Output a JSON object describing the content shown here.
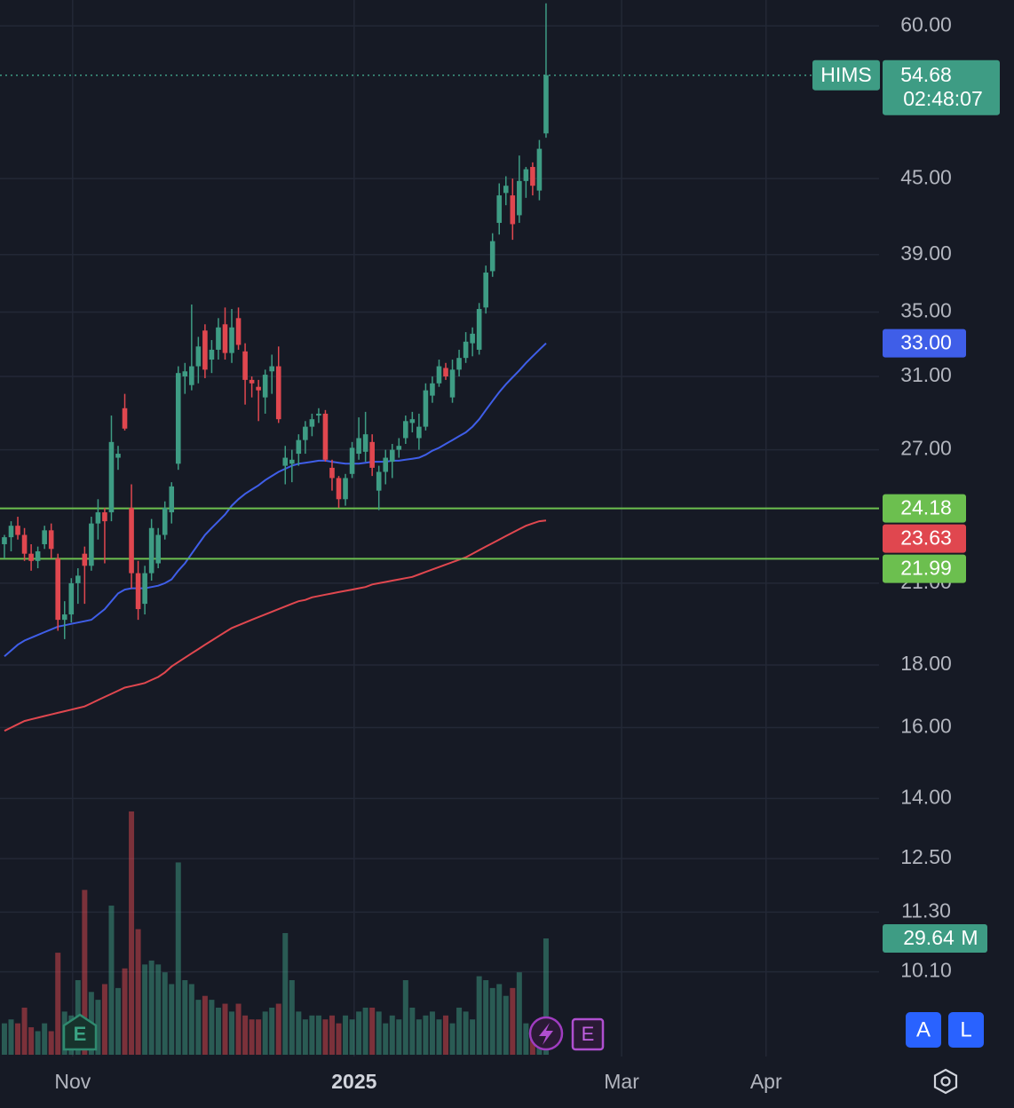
{
  "chart_data": {
    "type": "candlestick",
    "symbol": "HIMS",
    "countdown": "02:48:07",
    "log_scale": true,
    "grid": true,
    "x": [
      0,
      1,
      2,
      3,
      4,
      5,
      6,
      7,
      8,
      9,
      10,
      11,
      12,
      13,
      14,
      15,
      16,
      17,
      18,
      19,
      20,
      21,
      22,
      23,
      24,
      25,
      26,
      27,
      28,
      29,
      30,
      31,
      32,
      33,
      34,
      35,
      36,
      37,
      38,
      39,
      40,
      41,
      42,
      43,
      44,
      45,
      46,
      47,
      48,
      49,
      50,
      51,
      52,
      53,
      54,
      55,
      56,
      57,
      58,
      59,
      60,
      61,
      62,
      63,
      64,
      65,
      66,
      67,
      68,
      69,
      70,
      71,
      72,
      73,
      74,
      75,
      76,
      77,
      78,
      79,
      80,
      81
    ],
    "open": [
      22.6,
      22.9,
      23.4,
      23.0,
      22.2,
      21.9,
      22.6,
      23.2,
      22.0,
      19.6,
      19.8,
      21.0,
      22.2,
      21.7,
      23.5,
      24.0,
      24.0,
      26.6,
      29.2,
      24.2,
      21.4,
      20.2,
      21.4,
      21.8,
      23.0,
      24.0,
      26.3,
      31.0,
      30.5,
      31.6,
      33.8,
      32.0,
      32.6,
      34.2,
      32.4,
      34.6,
      32.5,
      30.8,
      30.4,
      29.8,
      31.3,
      31.6,
      26.2,
      26.3,
      26.8,
      27.5,
      28.2,
      28.8,
      28.9,
      26.1,
      25.6,
      24.6,
      25.8,
      26.8,
      26.9,
      27.4,
      25.0,
      25.9,
      26.4,
      27.0,
      27.6,
      28.4,
      27.6,
      28.2,
      29.9,
      30.6,
      31.5,
      29.8,
      31.4,
      32.1,
      33.0,
      32.6,
      35.3,
      37.8,
      41.4,
      43.8,
      43.6,
      42.0,
      44.8,
      46.0,
      44.0,
      49.0
    ],
    "high": [
      23.0,
      23.6,
      23.8,
      23.3,
      22.6,
      22.5,
      23.4,
      23.5,
      22.2,
      20.3,
      21.2,
      21.6,
      22.5,
      23.8,
      24.6,
      24.2,
      28.8,
      27.2,
      30.0,
      25.3,
      21.9,
      21.7,
      23.7,
      23.3,
      24.5,
      25.4,
      31.6,
      31.8,
      35.5,
      33.4,
      34.2,
      33.2,
      34.6,
      35.3,
      35.2,
      35.3,
      33.0,
      31.0,
      30.8,
      31.4,
      32.3,
      32.8,
      27.2,
      27.0,
      27.8,
      28.5,
      28.9,
      29.2,
      29.1,
      26.5,
      25.7,
      25.8,
      27.4,
      28.7,
      29.0,
      27.8,
      26.2,
      27.0,
      27.3,
      27.6,
      28.8,
      29.0,
      28.9,
      30.6,
      31.0,
      32.0,
      31.8,
      32.0,
      32.6,
      33.7,
      34.0,
      35.6,
      38.2,
      40.6,
      44.6,
      45.2,
      45.0,
      47.0,
      46.0,
      46.4,
      48.4,
      62.6
    ],
    "low": [
      22.0,
      22.3,
      22.8,
      21.9,
      21.5,
      21.6,
      22.4,
      22.0,
      19.2,
      18.9,
      19.5,
      20.2,
      20.2,
      21.5,
      22.8,
      21.8,
      23.6,
      26.0,
      28.0,
      20.8,
      19.6,
      19.8,
      21.1,
      21.6,
      22.8,
      23.5,
      26.0,
      30.0,
      30.2,
      30.6,
      30.9,
      31.2,
      32.0,
      32.0,
      31.8,
      32.6,
      29.4,
      29.8,
      28.5,
      28.9,
      30.0,
      28.4,
      25.3,
      25.4,
      26.2,
      26.8,
      27.7,
      28.4,
      26.4,
      25.0,
      24.2,
      24.3,
      25.6,
      26.5,
      26.4,
      25.7,
      24.1,
      25.3,
      25.6,
      26.6,
      27.3,
      27.9,
      27.0,
      28.0,
      29.5,
      30.4,
      30.8,
      29.5,
      31.0,
      31.8,
      32.2,
      32.3,
      34.9,
      37.4,
      40.5,
      42.8,
      40.1,
      41.4,
      43.4,
      43.6,
      43.2,
      48.6
    ],
    "close": [
      22.9,
      23.4,
      23.0,
      22.2,
      21.9,
      22.3,
      23.2,
      22.4,
      19.6,
      19.8,
      21.0,
      21.3,
      21.7,
      23.5,
      24.0,
      23.6,
      27.4,
      26.8,
      28.1,
      21.4,
      20.0,
      21.4,
      23.3,
      23.0,
      24.2,
      25.2,
      31.2,
      31.3,
      31.6,
      32.8,
      31.4,
      32.6,
      34.0,
      32.4,
      34.0,
      32.9,
      30.8,
      30.6,
      30.2,
      31.1,
      31.6,
      28.6,
      26.6,
      26.5,
      27.5,
      28.2,
      28.6,
      28.9,
      26.5,
      25.6,
      24.6,
      25.6,
      27.1,
      27.6,
      27.8,
      26.1,
      25.9,
      26.6,
      27.0,
      27.2,
      28.5,
      28.6,
      28.2,
      30.2,
      30.6,
      31.6,
      31.0,
      31.4,
      32.1,
      33.1,
      33.6,
      35.2,
      37.7,
      40.0,
      43.6,
      44.4,
      41.3,
      44.8,
      45.8,
      44.4,
      47.6,
      54.68
    ],
    "up_color": "#3e9c84",
    "down_color": "#e0474f",
    "xlim": [
      -0.66,
      130.8
    ],
    "xticks": [
      {
        "value": 10.2,
        "label": "Nov"
      },
      {
        "value": 52.3,
        "label": "2025"
      },
      {
        "value": 92.3,
        "label": "Mar"
      },
      {
        "value": 113.9,
        "label": "Apr"
      }
    ],
    "ylim": [
      8.61,
      63.0
    ],
    "yticks": [
      {
        "value": 60,
        "label": "60.00"
      },
      {
        "value": 45,
        "label": "45.00"
      },
      {
        "value": 39,
        "label": "39.00"
      },
      {
        "value": 35,
        "label": "35.00"
      },
      {
        "value": 31,
        "label": "31.00"
      },
      {
        "value": 27,
        "label": "27.00"
      },
      {
        "value": 21,
        "label": "21.00"
      },
      {
        "value": 18,
        "label": "18.00"
      },
      {
        "value": 16,
        "label": "16.00"
      },
      {
        "value": 14,
        "label": "14.00"
      },
      {
        "value": 12.5,
        "label": "12.50"
      },
      {
        "value": 11.3,
        "label": "11.30"
      },
      {
        "value": 10.1,
        "label": "10.10"
      }
    ],
    "series": [
      {
        "color": "#3f5ee8",
        "values": [
          18.3,
          18.5,
          18.7,
          18.85,
          18.95,
          19.05,
          19.15,
          19.25,
          19.35,
          19.4,
          19.45,
          19.5,
          19.55,
          19.6,
          19.8,
          20.0,
          20.3,
          20.6,
          20.75,
          20.8,
          20.8,
          20.8,
          20.85,
          20.9,
          21.0,
          21.15,
          21.5,
          21.8,
          22.2,
          22.6,
          23.0,
          23.3,
          23.6,
          23.9,
          24.3,
          24.6,
          24.85,
          25.05,
          25.25,
          25.5,
          25.7,
          25.9,
          26.05,
          26.2,
          26.3,
          26.35,
          26.4,
          26.45,
          26.45,
          26.4,
          26.35,
          26.3,
          26.3,
          26.3,
          26.35,
          26.4,
          26.4,
          26.4,
          26.45,
          26.45,
          26.5,
          26.55,
          26.6,
          26.75,
          26.95,
          27.1,
          27.3,
          27.5,
          27.7,
          27.9,
          28.2,
          28.6,
          29.1,
          29.6,
          30.1,
          30.55,
          30.95,
          31.35,
          31.8,
          32.2,
          32.6,
          33.0
        ],
        "value_labels": [
          null,
          null,
          null,
          null,
          null,
          null,
          null,
          null,
          null,
          null,
          null,
          null,
          null,
          null,
          null,
          null,
          null,
          null,
          null,
          null,
          null,
          null,
          null,
          null,
          null,
          null,
          null,
          null,
          null,
          null,
          null,
          null,
          null,
          null,
          null,
          null,
          null,
          null,
          null,
          null,
          null,
          null,
          null,
          null,
          null,
          null,
          null,
          null,
          null,
          null,
          null,
          null,
          null,
          null,
          null,
          null,
          null,
          null,
          null,
          null,
          null,
          null,
          null,
          null,
          null,
          null,
          null,
          null,
          null,
          null,
          null,
          null,
          null,
          null,
          null,
          null,
          null,
          null,
          null,
          null,
          null,
          "33.00"
        ]
      },
      {
        "color": "#e0474f",
        "values": [
          15.9,
          16.0,
          16.1,
          16.2,
          16.25,
          16.3,
          16.35,
          16.4,
          16.45,
          16.5,
          16.55,
          16.6,
          16.65,
          16.75,
          16.85,
          16.95,
          17.05,
          17.15,
          17.25,
          17.3,
          17.35,
          17.4,
          17.5,
          17.6,
          17.75,
          17.95,
          18.1,
          18.25,
          18.4,
          18.55,
          18.7,
          18.85,
          19.0,
          19.15,
          19.3,
          19.4,
          19.5,
          19.6,
          19.7,
          19.8,
          19.9,
          20.0,
          20.1,
          20.2,
          20.3,
          20.35,
          20.45,
          20.5,
          20.55,
          20.6,
          20.65,
          20.7,
          20.75,
          20.8,
          20.85,
          20.95,
          21.0,
          21.05,
          21.1,
          21.15,
          21.2,
          21.25,
          21.35,
          21.45,
          21.55,
          21.65,
          21.75,
          21.85,
          21.95,
          22.05,
          22.2,
          22.35,
          22.5,
          22.65,
          22.8,
          22.95,
          23.1,
          23.25,
          23.4,
          23.5,
          23.6,
          23.63
        ]
      }
    ],
    "levels": {
      "color": "#6cbf4f",
      "values": [
        24.18,
        21.99
      ]
    },
    "volume": {
      "unit": "M",
      "lim": [
        0,
        100
      ],
      "values": [
        8,
        9,
        8,
        12,
        7,
        6,
        8,
        6,
        26,
        11,
        10,
        19,
        42,
        16,
        14,
        18,
        38,
        17,
        22,
        62,
        32,
        23,
        24,
        23,
        21,
        18,
        49,
        19,
        18,
        14,
        15,
        14,
        12,
        13,
        11,
        13,
        10,
        9,
        9,
        11,
        12,
        13,
        31,
        19,
        11,
        9,
        10,
        10,
        9,
        10,
        8,
        10,
        9,
        11,
        12,
        12,
        11,
        8,
        10,
        9,
        19,
        12,
        9,
        10,
        11,
        9,
        10,
        8,
        12,
        11,
        9,
        20,
        19,
        17,
        18,
        15,
        17,
        21,
        8,
        6,
        5,
        29.64
      ]
    },
    "events": [
      "E",
      "E"
    ],
    "buttons": [
      "A",
      "L"
    ]
  }
}
